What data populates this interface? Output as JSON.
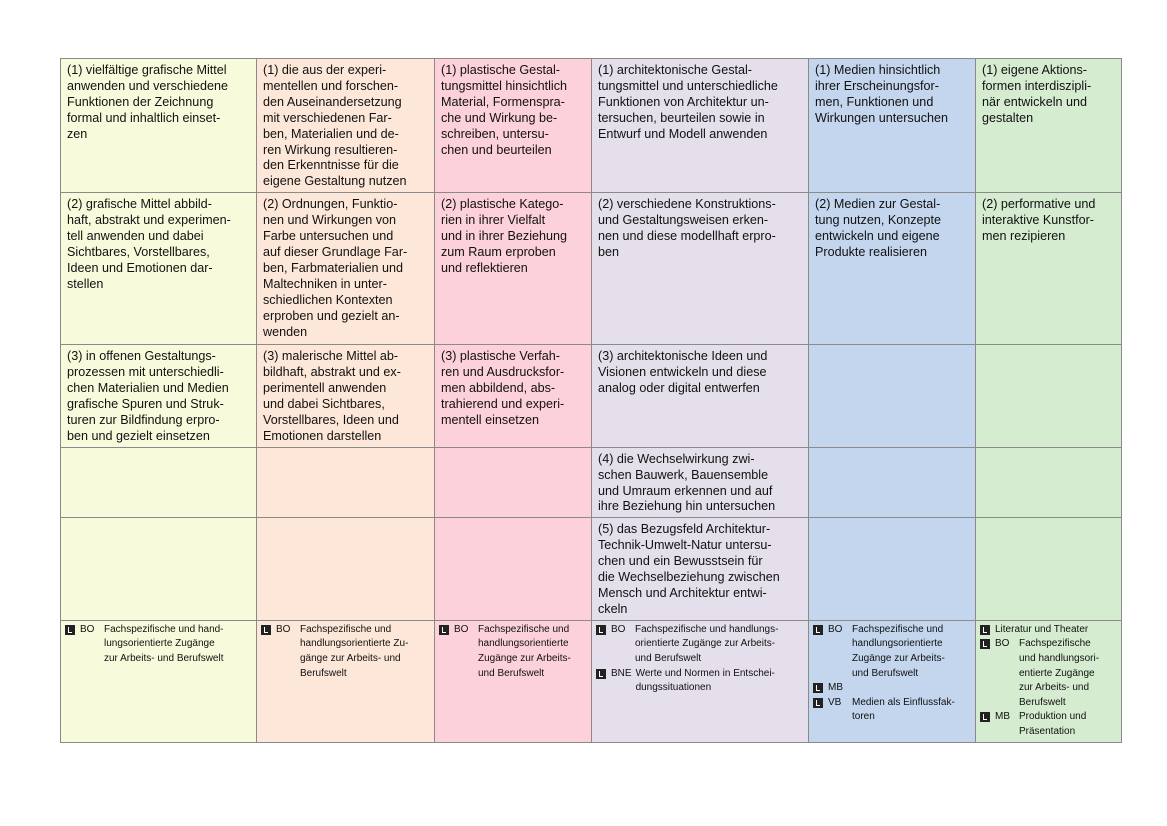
{
  "table": {
    "colors": [
      "#f8fbdb",
      "#fce7d8",
      "#fcd1da",
      "#e4dfea",
      "#c4d6ee",
      "#d5ecd0"
    ],
    "rows": [
      [
        "(1) vielfältige grafische Mittel\nanwenden und verschiedene\nFunktionen der Zeichnung\nformal und inhaltlich einset-\nzen",
        "(1) die aus der experi-\nmentellen und forschen-\nden Auseinandersetzung\nmit verschiedenen Far-\nben, Materialien und de-\nren Wirkung resultieren-\nden Erkenntnisse für die\neigene Gestaltung nutzen",
        "(1) plastische Gestal-\ntungsmittel hinsichtlich\nMaterial, Formenspra-\nche und Wirkung be-\nschreiben, untersu-\nchen und beurteilen",
        "(1) architektonische Gestal-\ntungsmittel und unterschiedliche\nFunktionen von Architektur un-\ntersuchen,  beurteilen sowie in\nEntwurf und Modell anwenden",
        "(1) Medien hinsichtlich\nihrer Erscheinungsfor-\nmen, Funktionen und\nWirkungen untersuchen",
        "(1) eigene Aktions-\nformen interdiszipli-\nnär entwickeln und\ngestalten"
      ],
      [
        "(2) grafische Mittel abbild-\nhaft, abstrakt und experimen-\ntell anwenden und dabei\nSichtbares, Vorstellbares,\nIdeen und Emotionen dar-\nstellen",
        "(2) Ordnungen, Funktio-\nnen und Wirkungen von\nFarbe untersuchen und\nauf dieser Grundlage Far-\nben, Farbmaterialien und\nMaltechniken in unter-\nschiedlichen Kontexten\nerproben und gezielt an-\nwenden",
        "(2) plastische Katego-\nrien in ihrer Vielfalt\nund in ihrer Beziehung\nzum Raum erproben\nund reflektieren",
        "(2) verschiedene Konstruktions-\nund Gestaltungsweisen erken-\nnen und diese modellhaft erpro-\nben",
        "(2) Medien zur Gestal-\ntung nutzen, Konzepte\nentwickeln und eigene\nProdukte realisieren",
        "(2) performative und\ninteraktive Kunstfor-\nmen rezipieren"
      ],
      [
        "(3) in offenen Gestaltungs-\nprozessen mit unterschiedli-\nchen Materialien und Medien\ngrafische Spuren und Struk-\nturen zur Bildfindung erpro-\nben und gezielt einsetzen",
        "(3) malerische Mittel ab-\nbildhaft, abstrakt und ex-\nperimentell anwenden\nund dabei Sichtbares,\nVorstellbares, Ideen und\nEmotionen darstellen",
        "(3) plastische Verfah-\nren und Ausdrucksfor-\nmen abbildend, abs-\ntrahierend und experi-\nmentell einsetzen",
        "(3) architektonische Ideen und\nVisionen entwickeln und diese\nanalog oder digital entwerfen",
        null,
        null
      ],
      [
        null,
        null,
        null,
        "(4) die Wechselwirkung zwi-\nschen Bauwerk, Bauensemble\nund Umraum erkennen und auf\nihre Beziehung hin untersuchen",
        null,
        null
      ],
      [
        null,
        null,
        null,
        "(5) das Bezugsfeld Architektur-\nTechnik-Umwelt-Natur untersu-\nchen und ein Bewusstsein für\ndie Wechselbeziehung zwischen\nMensch und Architektur entwi-\nckeln",
        null,
        null
      ]
    ],
    "notes": [
      [
        {
          "code": "BO",
          "text": "Fachspezifische und hand-\nlungsorientierte Zugänge\nzur Arbeits- und Berufswelt"
        }
      ],
      [
        {
          "code": "BO",
          "text": "Fachspezifische und\nhandlungsorientierte Zu-\ngänge zur Arbeits- und\nBerufswelt"
        }
      ],
      [
        {
          "code": "BO",
          "text": "Fachspezifische und\nhandlungsorientierte\nZugänge zur Arbeits-\nund Berufswelt"
        }
      ],
      [
        {
          "code": "BO",
          "text": "Fachspezifische und handlungs-\norientierte Zugänge zur Arbeits-\nund Berufswelt"
        },
        {
          "code": "BNE",
          "text": "Werte und Normen in Entschei-\ndungssituationen"
        }
      ],
      [
        {
          "code": "BO",
          "text": "Fachspezifische und\nhandlungsorientierte\nZugänge zur Arbeits-\nund Berufswelt"
        },
        {
          "code": "MB"
        },
        {
          "code": "VB",
          "text": "Medien als Einflussfak-\ntoren"
        }
      ],
      [
        {
          "text": "Literatur und Theater"
        },
        {
          "code": "BO",
          "text": "Fachspezifische\nund handlungsori-\nentierte Zugänge\nzur Arbeits- und\nBerufswelt"
        },
        {
          "code": "MB",
          "text": "Produktion und\nPräsentation"
        }
      ]
    ]
  }
}
